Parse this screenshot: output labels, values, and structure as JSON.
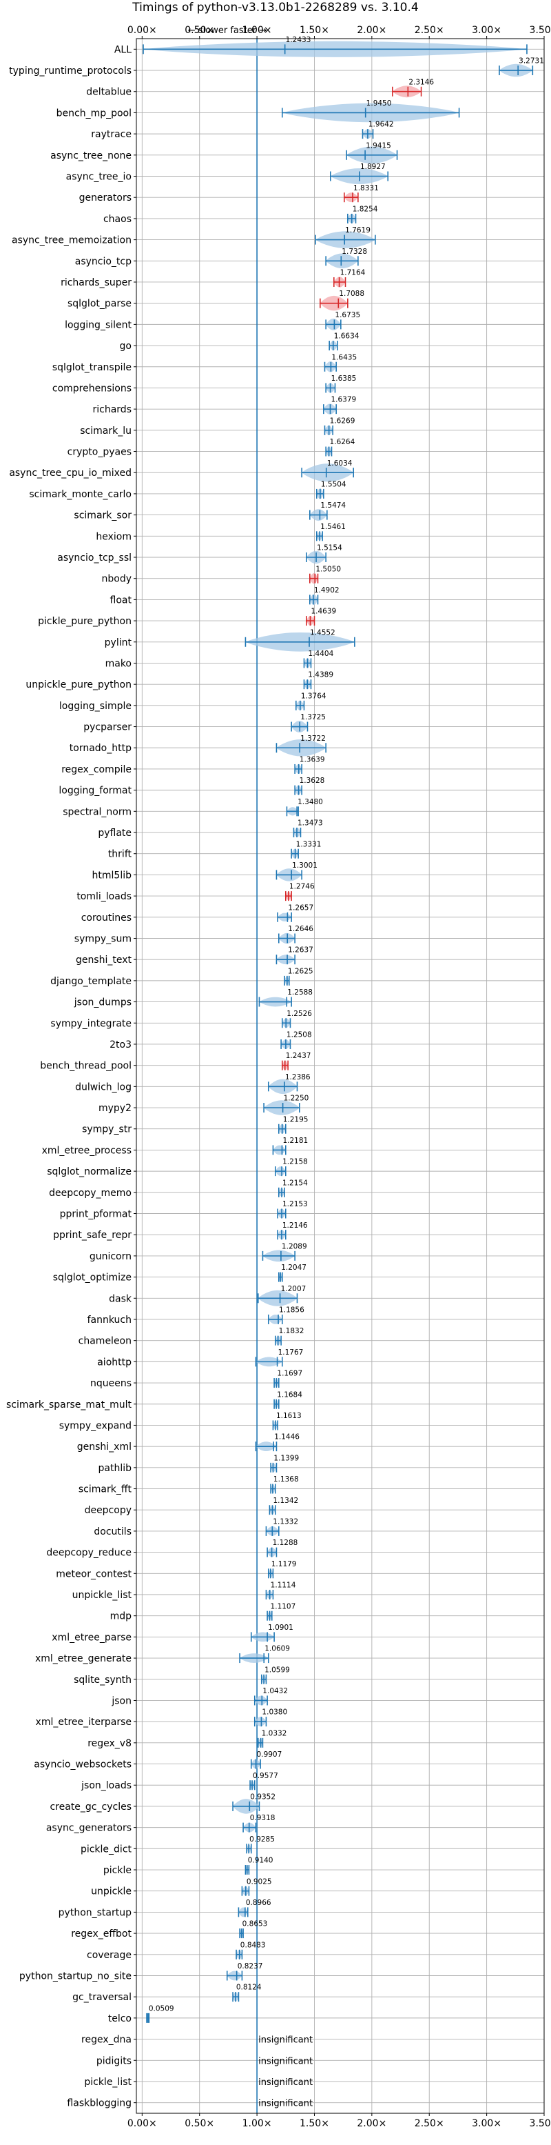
{
  "chart_data": {
    "type": "violin",
    "title": "Timings of python-v3.13.0b1-2268289 vs. 3.10.4",
    "xlim": [
      -0.05,
      3.5
    ],
    "xticks": [
      0.0,
      0.5,
      1.0,
      1.5,
      2.0,
      2.5,
      3.0,
      3.5
    ],
    "xtick_labels": [
      "0.00×",
      "0.50×",
      "1.00×",
      "1.50×",
      "2.00×",
      "2.50×",
      "3.00×",
      "3.50×"
    ],
    "reference_line": 1.0,
    "annotation": "← slower   faster →",
    "insignificant_label": "insignificant",
    "colors": {
      "significant": "#1f77b4",
      "slower": "#d62728",
      "violin_fill": "#a6c8e6",
      "slower_fill": "#f4a7ab"
    },
    "benchmarks": [
      {
        "name": "ALL",
        "value": 1.2433,
        "lo": 0.01,
        "hi": 3.35,
        "width": 0.75,
        "color": "blue"
      },
      {
        "name": "typing_runtime_protocols",
        "value": 3.2731,
        "lo": 3.11,
        "hi": 3.4,
        "width": 0.6,
        "color": "blue"
      },
      {
        "name": "deltablue",
        "value": 2.3146,
        "lo": 2.18,
        "hi": 2.43,
        "width": 0.55,
        "color": "red"
      },
      {
        "name": "bench_mp_pool",
        "value": 1.945,
        "lo": 1.22,
        "hi": 2.76,
        "width": 0.9,
        "color": "blue"
      },
      {
        "name": "raytrace",
        "value": 1.9642,
        "lo": 1.92,
        "hi": 2.01,
        "width": 0.45,
        "color": "blue"
      },
      {
        "name": "async_tree_none",
        "value": 1.9415,
        "lo": 1.78,
        "hi": 2.22,
        "width": 0.8,
        "color": "blue"
      },
      {
        "name": "async_tree_io",
        "value": 1.8927,
        "lo": 1.64,
        "hi": 2.14,
        "width": 0.75,
        "color": "blue"
      },
      {
        "name": "generators",
        "value": 1.8331,
        "lo": 1.76,
        "hi": 1.88,
        "width": 0.45,
        "color": "red"
      },
      {
        "name": "chaos",
        "value": 1.8254,
        "lo": 1.79,
        "hi": 1.86,
        "width": 0.45,
        "color": "blue"
      },
      {
        "name": "async_tree_memoization",
        "value": 1.7619,
        "lo": 1.51,
        "hi": 2.03,
        "width": 0.8,
        "color": "blue"
      },
      {
        "name": "asyncio_tcp",
        "value": 1.7328,
        "lo": 1.6,
        "hi": 1.88,
        "width": 0.7,
        "color": "blue"
      },
      {
        "name": "richards_super",
        "value": 1.7164,
        "lo": 1.67,
        "hi": 1.77,
        "width": 0.5,
        "color": "red"
      },
      {
        "name": "sqlglot_parse",
        "value": 1.7088,
        "lo": 1.55,
        "hi": 1.79,
        "width": 0.7,
        "color": "red"
      },
      {
        "name": "logging_silent",
        "value": 1.6735,
        "lo": 1.6,
        "hi": 1.73,
        "width": 0.55,
        "color": "blue"
      },
      {
        "name": "go",
        "value": 1.6634,
        "lo": 1.63,
        "hi": 1.7,
        "width": 0.45,
        "color": "blue"
      },
      {
        "name": "sqlglot_transpile",
        "value": 1.6435,
        "lo": 1.59,
        "hi": 1.69,
        "width": 0.5,
        "color": "blue"
      },
      {
        "name": "comprehensions",
        "value": 1.6385,
        "lo": 1.6,
        "hi": 1.68,
        "width": 0.45,
        "color": "blue"
      },
      {
        "name": "richards",
        "value": 1.6379,
        "lo": 1.58,
        "hi": 1.69,
        "width": 0.5,
        "color": "blue"
      },
      {
        "name": "scimark_lu",
        "value": 1.6269,
        "lo": 1.59,
        "hi": 1.66,
        "width": 0.45,
        "color": "blue"
      },
      {
        "name": "crypto_pyaes",
        "value": 1.6264,
        "lo": 1.6,
        "hi": 1.65,
        "width": 0.45,
        "color": "blue"
      },
      {
        "name": "async_tree_cpu_io_mixed",
        "value": 1.6034,
        "lo": 1.39,
        "hi": 1.84,
        "width": 0.85,
        "color": "blue"
      },
      {
        "name": "scimark_monte_carlo",
        "value": 1.5504,
        "lo": 1.52,
        "hi": 1.58,
        "width": 0.5,
        "color": "blue"
      },
      {
        "name": "scimark_sor",
        "value": 1.5474,
        "lo": 1.46,
        "hi": 1.61,
        "width": 0.55,
        "color": "blue"
      },
      {
        "name": "hexiom",
        "value": 1.5461,
        "lo": 1.52,
        "hi": 1.57,
        "width": 0.4,
        "color": "blue"
      },
      {
        "name": "asyncio_tcp_ssl",
        "value": 1.5154,
        "lo": 1.43,
        "hi": 1.6,
        "width": 0.6,
        "color": "blue"
      },
      {
        "name": "nbody",
        "value": 1.505,
        "lo": 1.46,
        "hi": 1.53,
        "width": 0.5,
        "color": "red"
      },
      {
        "name": "float",
        "value": 1.4902,
        "lo": 1.46,
        "hi": 1.53,
        "width": 0.5,
        "color": "blue"
      },
      {
        "name": "pickle_pure_python",
        "value": 1.4639,
        "lo": 1.43,
        "hi": 1.5,
        "width": 0.45,
        "color": "red"
      },
      {
        "name": "pylint",
        "value": 1.4552,
        "lo": 0.9,
        "hi": 1.85,
        "width": 0.9,
        "color": "blue"
      },
      {
        "name": "mako",
        "value": 1.4404,
        "lo": 1.41,
        "hi": 1.47,
        "width": 0.45,
        "color": "blue"
      },
      {
        "name": "unpickle_pure_python",
        "value": 1.4389,
        "lo": 1.41,
        "hi": 1.47,
        "width": 0.45,
        "color": "blue"
      },
      {
        "name": "logging_simple",
        "value": 1.3764,
        "lo": 1.34,
        "hi": 1.41,
        "width": 0.45,
        "color": "blue"
      },
      {
        "name": "pycparser",
        "value": 1.3725,
        "lo": 1.3,
        "hi": 1.44,
        "width": 0.55,
        "color": "blue"
      },
      {
        "name": "tornado_http",
        "value": 1.3722,
        "lo": 1.17,
        "hi": 1.6,
        "width": 0.8,
        "color": "blue"
      },
      {
        "name": "regex_compile",
        "value": 1.3639,
        "lo": 1.33,
        "hi": 1.39,
        "width": 0.45,
        "color": "blue"
      },
      {
        "name": "logging_format",
        "value": 1.3628,
        "lo": 1.33,
        "hi": 1.39,
        "width": 0.45,
        "color": "blue"
      },
      {
        "name": "spectral_norm",
        "value": 1.348,
        "lo": 1.26,
        "hi": 1.36,
        "width": 0.4,
        "color": "blue"
      },
      {
        "name": "pyflate",
        "value": 1.3473,
        "lo": 1.32,
        "hi": 1.38,
        "width": 0.45,
        "color": "blue"
      },
      {
        "name": "thrift",
        "value": 1.3331,
        "lo": 1.3,
        "hi": 1.36,
        "width": 0.45,
        "color": "blue"
      },
      {
        "name": "html5lib",
        "value": 1.3001,
        "lo": 1.17,
        "hi": 1.39,
        "width": 0.6,
        "color": "blue"
      },
      {
        "name": "tomli_loads",
        "value": 1.2746,
        "lo": 1.25,
        "hi": 1.3,
        "width": 0.4,
        "color": "red"
      },
      {
        "name": "coroutines",
        "value": 1.2657,
        "lo": 1.18,
        "hi": 1.3,
        "width": 0.4,
        "color": "blue"
      },
      {
        "name": "sympy_sum",
        "value": 1.2646,
        "lo": 1.19,
        "hi": 1.33,
        "width": 0.5,
        "color": "blue"
      },
      {
        "name": "genshi_text",
        "value": 1.2637,
        "lo": 1.17,
        "hi": 1.33,
        "width": 0.45,
        "color": "blue"
      },
      {
        "name": "django_template",
        "value": 1.2625,
        "lo": 1.24,
        "hi": 1.28,
        "width": 0.4,
        "color": "blue"
      },
      {
        "name": "json_dumps",
        "value": 1.2588,
        "lo": 1.02,
        "hi": 1.3,
        "width": 0.45,
        "color": "blue"
      },
      {
        "name": "sympy_integrate",
        "value": 1.2526,
        "lo": 1.22,
        "hi": 1.29,
        "width": 0.45,
        "color": "blue"
      },
      {
        "name": "2to3",
        "value": 1.2508,
        "lo": 1.21,
        "hi": 1.29,
        "width": 0.45,
        "color": "blue"
      },
      {
        "name": "bench_thread_pool",
        "value": 1.2437,
        "lo": 1.22,
        "hi": 1.27,
        "width": 0.45,
        "color": "red"
      },
      {
        "name": "dulwich_log",
        "value": 1.2386,
        "lo": 1.1,
        "hi": 1.35,
        "width": 0.7,
        "color": "blue"
      },
      {
        "name": "mypy2",
        "value": 1.225,
        "lo": 1.06,
        "hi": 1.37,
        "width": 0.7,
        "color": "blue"
      },
      {
        "name": "sympy_str",
        "value": 1.2195,
        "lo": 1.19,
        "hi": 1.25,
        "width": 0.45,
        "color": "blue"
      },
      {
        "name": "xml_etree_process",
        "value": 1.2181,
        "lo": 1.14,
        "hi": 1.25,
        "width": 0.45,
        "color": "blue"
      },
      {
        "name": "sqlglot_normalize",
        "value": 1.2158,
        "lo": 1.16,
        "hi": 1.25,
        "width": 0.45,
        "color": "blue"
      },
      {
        "name": "deepcopy_memo",
        "value": 1.2154,
        "lo": 1.19,
        "hi": 1.24,
        "width": 0.4,
        "color": "blue"
      },
      {
        "name": "pprint_pformat",
        "value": 1.2153,
        "lo": 1.18,
        "hi": 1.25,
        "width": 0.45,
        "color": "blue"
      },
      {
        "name": "pprint_safe_repr",
        "value": 1.2146,
        "lo": 1.18,
        "hi": 1.25,
        "width": 0.45,
        "color": "blue"
      },
      {
        "name": "gunicorn",
        "value": 1.2089,
        "lo": 1.05,
        "hi": 1.33,
        "width": 0.55,
        "color": "blue"
      },
      {
        "name": "sqlglot_optimize",
        "value": 1.2047,
        "lo": 1.19,
        "hi": 1.22,
        "width": 0.4,
        "color": "blue"
      },
      {
        "name": "dask",
        "value": 1.2007,
        "lo": 1.01,
        "hi": 1.35,
        "width": 0.75,
        "color": "blue"
      },
      {
        "name": "fannkuch",
        "value": 1.1856,
        "lo": 1.1,
        "hi": 1.22,
        "width": 0.45,
        "color": "blue"
      },
      {
        "name": "chameleon",
        "value": 1.1832,
        "lo": 1.16,
        "hi": 1.21,
        "width": 0.45,
        "color": "blue"
      },
      {
        "name": "aiohttp",
        "value": 1.1767,
        "lo": 0.99,
        "hi": 1.22,
        "width": 0.45,
        "color": "blue"
      },
      {
        "name": "nqueens",
        "value": 1.1697,
        "lo": 1.15,
        "hi": 1.19,
        "width": 0.4,
        "color": "blue"
      },
      {
        "name": "scimark_sparse_mat_mult",
        "value": 1.1684,
        "lo": 1.15,
        "hi": 1.19,
        "width": 0.4,
        "color": "blue"
      },
      {
        "name": "sympy_expand",
        "value": 1.1613,
        "lo": 1.14,
        "hi": 1.18,
        "width": 0.4,
        "color": "blue"
      },
      {
        "name": "genshi_xml",
        "value": 1.1446,
        "lo": 0.99,
        "hi": 1.17,
        "width": 0.45,
        "color": "blue"
      },
      {
        "name": "pathlib",
        "value": 1.1399,
        "lo": 1.12,
        "hi": 1.17,
        "width": 0.4,
        "color": "blue"
      },
      {
        "name": "scimark_fft",
        "value": 1.1368,
        "lo": 1.12,
        "hi": 1.16,
        "width": 0.4,
        "color": "blue"
      },
      {
        "name": "deepcopy",
        "value": 1.1342,
        "lo": 1.11,
        "hi": 1.16,
        "width": 0.4,
        "color": "blue"
      },
      {
        "name": "docutils",
        "value": 1.1332,
        "lo": 1.08,
        "hi": 1.19,
        "width": 0.45,
        "color": "blue"
      },
      {
        "name": "deepcopy_reduce",
        "value": 1.1288,
        "lo": 1.09,
        "hi": 1.17,
        "width": 0.45,
        "color": "blue"
      },
      {
        "name": "meteor_contest",
        "value": 1.1179,
        "lo": 1.1,
        "hi": 1.14,
        "width": 0.4,
        "color": "blue"
      },
      {
        "name": "unpickle_list",
        "value": 1.1114,
        "lo": 1.08,
        "hi": 1.14,
        "width": 0.4,
        "color": "blue"
      },
      {
        "name": "mdp",
        "value": 1.1107,
        "lo": 1.09,
        "hi": 1.13,
        "width": 0.4,
        "color": "blue"
      },
      {
        "name": "xml_etree_parse",
        "value": 1.0901,
        "lo": 0.95,
        "hi": 1.15,
        "width": 0.45,
        "color": "blue"
      },
      {
        "name": "xml_etree_generate",
        "value": 1.0609,
        "lo": 0.85,
        "hi": 1.1,
        "width": 0.45,
        "color": "blue"
      },
      {
        "name": "sqlite_synth",
        "value": 1.0599,
        "lo": 1.04,
        "hi": 1.08,
        "width": 0.4,
        "color": "blue"
      },
      {
        "name": "json",
        "value": 1.0432,
        "lo": 0.98,
        "hi": 1.09,
        "width": 0.45,
        "color": "blue"
      },
      {
        "name": "xml_etree_iterparse",
        "value": 1.038,
        "lo": 0.98,
        "hi": 1.08,
        "width": 0.45,
        "color": "blue"
      },
      {
        "name": "regex_v8",
        "value": 1.0332,
        "lo": 1.01,
        "hi": 1.05,
        "width": 0.4,
        "color": "blue"
      },
      {
        "name": "asyncio_websockets",
        "value": 0.9907,
        "lo": 0.95,
        "hi": 1.03,
        "width": 0.45,
        "color": "blue"
      },
      {
        "name": "json_loads",
        "value": 0.9577,
        "lo": 0.94,
        "hi": 0.98,
        "width": 0.4,
        "color": "blue"
      },
      {
        "name": "create_gc_cycles",
        "value": 0.9352,
        "lo": 0.79,
        "hi": 1.02,
        "width": 0.7,
        "color": "blue"
      },
      {
        "name": "async_generators",
        "value": 0.9318,
        "lo": 0.88,
        "hi": 0.99,
        "width": 0.45,
        "color": "blue"
      },
      {
        "name": "pickle_dict",
        "value": 0.9285,
        "lo": 0.91,
        "hi": 0.95,
        "width": 0.4,
        "color": "blue"
      },
      {
        "name": "pickle",
        "value": 0.914,
        "lo": 0.9,
        "hi": 0.93,
        "width": 0.4,
        "color": "blue"
      },
      {
        "name": "unpickle",
        "value": 0.9025,
        "lo": 0.87,
        "hi": 0.93,
        "width": 0.45,
        "color": "blue"
      },
      {
        "name": "python_startup",
        "value": 0.8966,
        "lo": 0.84,
        "hi": 0.92,
        "width": 0.45,
        "color": "blue"
      },
      {
        "name": "regex_effbot",
        "value": 0.8653,
        "lo": 0.85,
        "hi": 0.88,
        "width": 0.4,
        "color": "blue"
      },
      {
        "name": "coverage",
        "value": 0.8483,
        "lo": 0.82,
        "hi": 0.87,
        "width": 0.45,
        "color": "blue"
      },
      {
        "name": "python_startup_no_site",
        "value": 0.8237,
        "lo": 0.74,
        "hi": 0.87,
        "width": 0.45,
        "color": "blue"
      },
      {
        "name": "gc_traversal",
        "value": 0.8124,
        "lo": 0.79,
        "hi": 0.84,
        "width": 0.45,
        "color": "blue"
      },
      {
        "name": "telco",
        "value": 0.0509,
        "lo": 0.04,
        "hi": 0.06,
        "width": 0.4,
        "color": "blue"
      },
      {
        "name": "regex_dna",
        "value": null,
        "insignificant": true
      },
      {
        "name": "pidigits",
        "value": null,
        "insignificant": true
      },
      {
        "name": "pickle_list",
        "value": null,
        "insignificant": true
      },
      {
        "name": "flaskblogging",
        "value": null,
        "insignificant": true
      }
    ]
  }
}
